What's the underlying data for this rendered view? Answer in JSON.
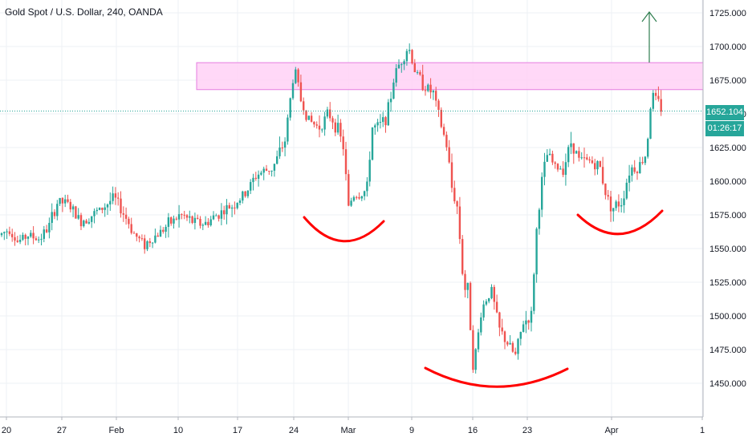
{
  "header": {
    "title": "Gold Spot / U.S. Dollar, 240, OANDA"
  },
  "price_badges": {
    "last_price": "1652.104",
    "countdown": "01:26:17"
  },
  "colors": {
    "up": "#26a69a",
    "down": "#ef5350",
    "zone_fill": "#ffd1f6",
    "zone_stroke": "#e57de0",
    "pattern_curve": "#ff0000",
    "arrow": "#2e7d4f",
    "grid": "#eef0f4",
    "axis_text": "#131722"
  },
  "chart_data": {
    "type": "candlestick",
    "title": "Gold Spot / U.S. Dollar, 240, OANDA",
    "x_ticks": [
      "20",
      "27",
      "Feb",
      "10",
      "17",
      "24",
      "Mar",
      "9",
      "16",
      "23",
      "Apr",
      "1"
    ],
    "y_ticks": [
      "1725.000",
      "1700.000",
      "1675.000",
      "1650.000",
      "1625.000",
      "1600.000",
      "1575.000",
      "1550.000",
      "1525.000",
      "1500.000",
      "1475.000",
      "1450.000"
    ],
    "ylim": [
      1430,
      1728
    ],
    "last_price": 1652.104,
    "resistance_zone": [
      1668,
      1688
    ],
    "close_path": [
      [
        0,
        1560
      ],
      [
        12,
        1565
      ],
      [
        22,
        1555
      ],
      [
        35,
        1560
      ],
      [
        48,
        1557
      ],
      [
        60,
        1565
      ],
      [
        72,
        1585
      ],
      [
        85,
        1583
      ],
      [
        100,
        1570
      ],
      [
        115,
        1575
      ],
      [
        128,
        1580
      ],
      [
        142,
        1588
      ],
      [
        155,
        1575
      ],
      [
        168,
        1560
      ],
      [
        180,
        1553
      ],
      [
        195,
        1560
      ],
      [
        210,
        1568
      ],
      [
        225,
        1575
      ],
      [
        240,
        1570
      ],
      [
        255,
        1568
      ],
      [
        270,
        1575
      ],
      [
        290,
        1582
      ],
      [
        305,
        1590
      ],
      [
        320,
        1605
      ],
      [
        340,
        1610
      ],
      [
        355,
        1630
      ],
      [
        367,
        1685
      ],
      [
        375,
        1660
      ],
      [
        385,
        1645
      ],
      [
        397,
        1640
      ],
      [
        410,
        1650
      ],
      [
        420,
        1640
      ],
      [
        428,
        1625
      ],
      [
        434,
        1580
      ],
      [
        440,
        1590
      ],
      [
        450,
        1590
      ],
      [
        458,
        1595
      ],
      [
        463,
        1640
      ],
      [
        472,
        1640
      ],
      [
        483,
        1650
      ],
      [
        492,
        1680
      ],
      [
        500,
        1690
      ],
      [
        509,
        1700
      ],
      [
        518,
        1680
      ],
      [
        530,
        1670
      ],
      [
        540,
        1665
      ],
      [
        548,
        1645
      ],
      [
        557,
        1625
      ],
      [
        563,
        1595
      ],
      [
        570,
        1580
      ],
      [
        578,
        1520
      ],
      [
        583,
        1520
      ],
      [
        590,
        1460
      ],
      [
        600,
        1505
      ],
      [
        612,
        1520
      ],
      [
        622,
        1490
      ],
      [
        632,
        1480
      ],
      [
        642,
        1470
      ],
      [
        652,
        1495
      ],
      [
        662,
        1500
      ],
      [
        668,
        1560
      ],
      [
        675,
        1600
      ],
      [
        682,
        1620
      ],
      [
        692,
        1610
      ],
      [
        702,
        1610
      ],
      [
        712,
        1630
      ],
      [
        722,
        1615
      ],
      [
        735,
        1615
      ],
      [
        748,
        1610
      ],
      [
        755,
        1590
      ],
      [
        763,
        1580
      ],
      [
        775,
        1585
      ],
      [
        785,
        1610
      ],
      [
        795,
        1610
      ],
      [
        805,
        1620
      ],
      [
        812,
        1665
      ],
      [
        818,
        1660
      ],
      [
        826,
        1652
      ]
    ],
    "annotations": {
      "pattern": "inverse head and shoulders",
      "left_shoulder_low": 1555,
      "head_low": 1447,
      "right_shoulder_low": 1560,
      "breakout_arrow": "up"
    }
  }
}
